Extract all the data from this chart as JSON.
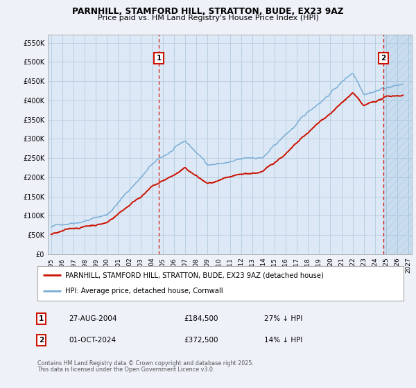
{
  "title_line1": "PARNHILL, STAMFORD HILL, STRATTON, BUDE, EX23 9AZ",
  "title_line2": "Price paid vs. HM Land Registry's House Price Index (HPI)",
  "background_color": "#eef2f8",
  "plot_bg_color": "#dce8f5",
  "grid_color": "#b8cfe0",
  "hpi_color": "#7aaed6",
  "price_color": "#cc1100",
  "yticks": [
    0,
    50000,
    100000,
    150000,
    200000,
    250000,
    300000,
    350000,
    400000,
    450000,
    500000,
    550000
  ],
  "ytick_labels": [
    "£0",
    "£50K",
    "£100K",
    "£150K",
    "£200K",
    "£250K",
    "£300K",
    "£350K",
    "£400K",
    "£450K",
    "£500K",
    "£550K"
  ],
  "ylim": [
    0,
    570000
  ],
  "xlim_start": 1994.7,
  "xlim_end": 2027.3,
  "xticks": [
    1995,
    1996,
    1997,
    1998,
    1999,
    2000,
    2001,
    2002,
    2003,
    2004,
    2005,
    2006,
    2007,
    2008,
    2009,
    2010,
    2011,
    2012,
    2013,
    2014,
    2015,
    2016,
    2017,
    2018,
    2019,
    2020,
    2021,
    2022,
    2023,
    2024,
    2025,
    2026,
    2027
  ],
  "t1": 2004.65,
  "p1": 184500,
  "t2": 2024.75,
  "p2": 372500,
  "annotation1": {
    "label": "1",
    "date": "27-AUG-2004",
    "price": "£184,500",
    "hpi_diff": "27% ↓ HPI"
  },
  "annotation2": {
    "label": "2",
    "date": "01-OCT-2024",
    "price": "£372,500",
    "hpi_diff": "14% ↓ HPI"
  },
  "legend_entries": [
    "PARNHILL, STAMFORD HILL, STRATTON, BUDE, EX23 9AZ (detached house)",
    "HPI: Average price, detached house, Cornwall"
  ],
  "footer_line1": "Contains HM Land Registry data © Crown copyright and database right 2025.",
  "footer_line2": "This data is licensed under the Open Government Licence v3.0."
}
